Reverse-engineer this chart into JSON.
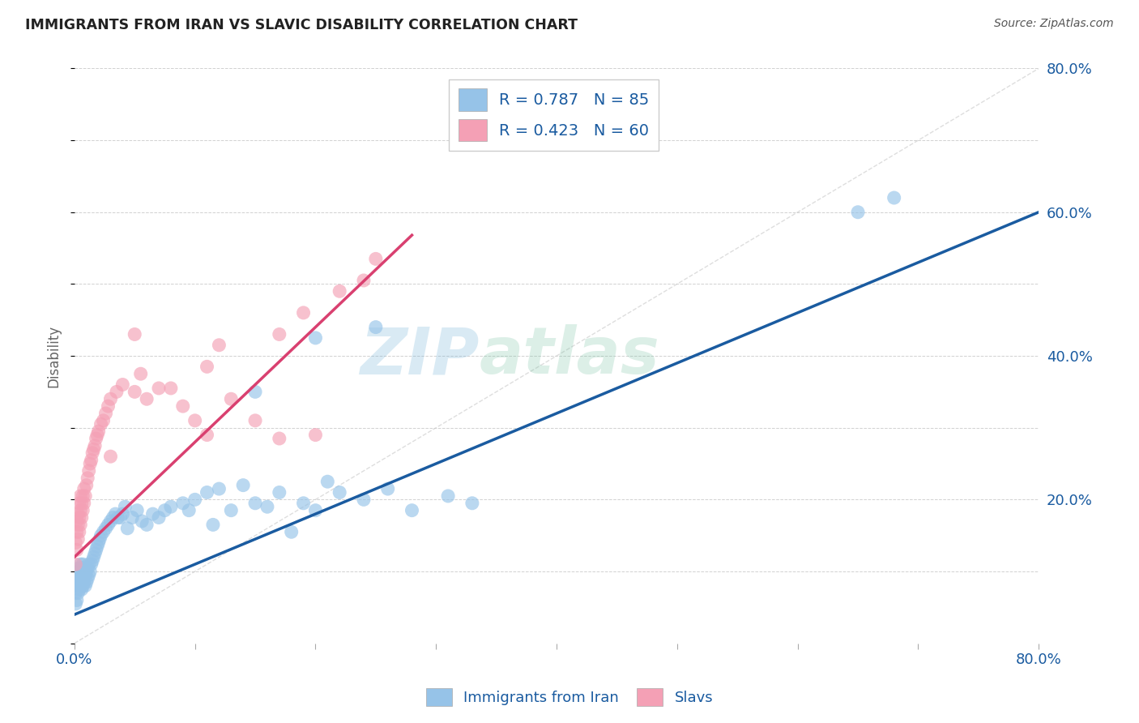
{
  "title": "IMMIGRANTS FROM IRAN VS SLAVIC DISABILITY CORRELATION CHART",
  "source": "Source: ZipAtlas.com",
  "ylabel": "Disability",
  "xlim": [
    0.0,
    0.8
  ],
  "ylim": [
    0.0,
    0.8
  ],
  "blue_color": "#96C3E8",
  "pink_color": "#F4A0B5",
  "blue_line_color": "#1A5BA0",
  "pink_line_color": "#D94070",
  "diag_line_color": "#C8C8C8",
  "legend_label_blue": "R = 0.787   N = 85",
  "legend_label_pink": "R = 0.423   N = 60",
  "bottom_legend_blue": "Immigrants from Iran",
  "bottom_legend_pink": "Slavs",
  "watermark_zip": "ZIP",
  "watermark_atlas": "atlas",
  "background_color": "#FFFFFF",
  "grid_color": "#CCCCCC",
  "blue_scatter_x": [
    0.001,
    0.001,
    0.002,
    0.002,
    0.002,
    0.003,
    0.003,
    0.003,
    0.004,
    0.004,
    0.004,
    0.005,
    0.005,
    0.005,
    0.006,
    0.006,
    0.006,
    0.007,
    0.007,
    0.007,
    0.008,
    0.008,
    0.009,
    0.009,
    0.01,
    0.01,
    0.011,
    0.011,
    0.012,
    0.012,
    0.013,
    0.014,
    0.015,
    0.016,
    0.017,
    0.018,
    0.019,
    0.02,
    0.021,
    0.022,
    0.024,
    0.026,
    0.028,
    0.03,
    0.032,
    0.034,
    0.036,
    0.038,
    0.04,
    0.042,
    0.044,
    0.048,
    0.052,
    0.056,
    0.06,
    0.065,
    0.07,
    0.075,
    0.08,
    0.09,
    0.095,
    0.1,
    0.11,
    0.115,
    0.12,
    0.13,
    0.14,
    0.15,
    0.16,
    0.17,
    0.18,
    0.19,
    0.2,
    0.21,
    0.22,
    0.24,
    0.26,
    0.28,
    0.31,
    0.33,
    0.15,
    0.2,
    0.25,
    0.65,
    0.68
  ],
  "blue_scatter_y": [
    0.055,
    0.07,
    0.06,
    0.08,
    0.09,
    0.07,
    0.085,
    0.1,
    0.075,
    0.09,
    0.105,
    0.08,
    0.095,
    0.11,
    0.075,
    0.09,
    0.105,
    0.08,
    0.095,
    0.11,
    0.085,
    0.1,
    0.08,
    0.095,
    0.085,
    0.1,
    0.09,
    0.105,
    0.095,
    0.11,
    0.1,
    0.11,
    0.115,
    0.12,
    0.125,
    0.13,
    0.135,
    0.14,
    0.145,
    0.15,
    0.155,
    0.16,
    0.165,
    0.17,
    0.175,
    0.18,
    0.175,
    0.175,
    0.18,
    0.19,
    0.16,
    0.175,
    0.185,
    0.17,
    0.165,
    0.18,
    0.175,
    0.185,
    0.19,
    0.195,
    0.185,
    0.2,
    0.21,
    0.165,
    0.215,
    0.185,
    0.22,
    0.195,
    0.19,
    0.21,
    0.155,
    0.195,
    0.185,
    0.225,
    0.21,
    0.2,
    0.215,
    0.185,
    0.205,
    0.195,
    0.35,
    0.425,
    0.44,
    0.6,
    0.62
  ],
  "pink_scatter_x": [
    0.001,
    0.001,
    0.002,
    0.002,
    0.002,
    0.003,
    0.003,
    0.003,
    0.004,
    0.004,
    0.004,
    0.005,
    0.005,
    0.005,
    0.006,
    0.006,
    0.007,
    0.007,
    0.008,
    0.008,
    0.009,
    0.01,
    0.011,
    0.012,
    0.013,
    0.014,
    0.015,
    0.016,
    0.017,
    0.018,
    0.019,
    0.02,
    0.022,
    0.024,
    0.026,
    0.028,
    0.03,
    0.035,
    0.04,
    0.05,
    0.06,
    0.07,
    0.08,
    0.09,
    0.1,
    0.11,
    0.13,
    0.15,
    0.17,
    0.2,
    0.05,
    0.11,
    0.17,
    0.22,
    0.24,
    0.03,
    0.055,
    0.12,
    0.19,
    0.25
  ],
  "pink_scatter_y": [
    0.11,
    0.14,
    0.13,
    0.155,
    0.17,
    0.145,
    0.165,
    0.18,
    0.155,
    0.175,
    0.195,
    0.165,
    0.185,
    0.205,
    0.175,
    0.195,
    0.185,
    0.205,
    0.195,
    0.215,
    0.205,
    0.22,
    0.23,
    0.24,
    0.25,
    0.255,
    0.265,
    0.27,
    0.275,
    0.285,
    0.29,
    0.295,
    0.305,
    0.31,
    0.32,
    0.33,
    0.34,
    0.35,
    0.36,
    0.35,
    0.34,
    0.355,
    0.355,
    0.33,
    0.31,
    0.29,
    0.34,
    0.31,
    0.285,
    0.29,
    0.43,
    0.385,
    0.43,
    0.49,
    0.505,
    0.26,
    0.375,
    0.415,
    0.46,
    0.535
  ]
}
